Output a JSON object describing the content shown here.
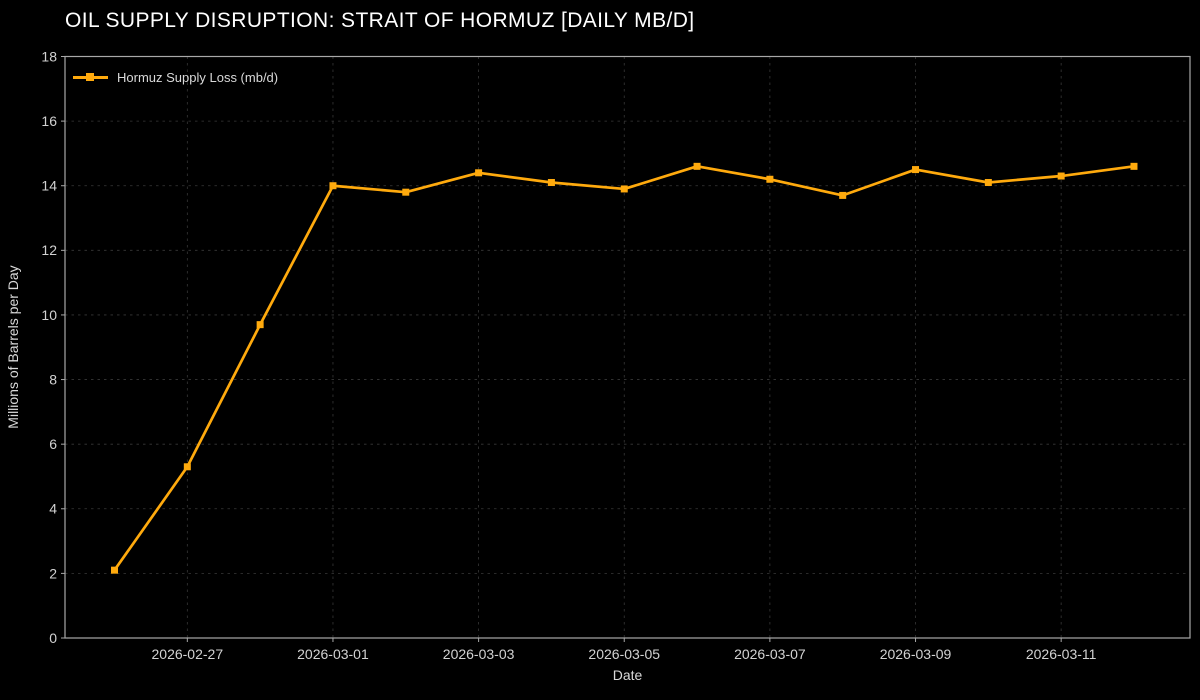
{
  "title": "OIL SUPPLY DISRUPTION: STRAIT OF HORMUZ [DAILY MB/D]",
  "legend": {
    "label": "Hormuz Supply Loss (mb/d)"
  },
  "colors": {
    "background": "#000000",
    "line": "#ffaa0d",
    "marker": "#ffaa0d",
    "grid": "#383838",
    "spine": "#a8a8a8",
    "tick_label": "#d2d2d2",
    "axis_label": "#d9d9d9",
    "title": "#ffffff"
  },
  "chart_data": {
    "type": "line",
    "title": "OIL SUPPLY DISRUPTION: STRAIT OF HORMUZ [DAILY MB/D]",
    "xlabel": "Date",
    "ylabel": "Millions of Barrels per Day",
    "ylim": [
      0,
      18
    ],
    "y_ticks": [
      0,
      2,
      4,
      6,
      8,
      10,
      12,
      14,
      16,
      18
    ],
    "x_tick_labels": [
      "2026-02-27",
      "2026-03-01",
      "2026-03-03",
      "2026-03-05",
      "2026-03-07",
      "2026-03-09",
      "2026-03-11"
    ],
    "x_tick_indices": [
      1,
      3,
      5,
      7,
      9,
      11,
      13
    ],
    "grid": true,
    "grid_style": "dashed",
    "legend_position": "upper-left",
    "series": [
      {
        "name": "Hormuz Supply Loss (mb/d)",
        "marker": "square",
        "x": [
          "2026-02-26",
          "2026-02-27",
          "2026-02-28",
          "2026-03-01",
          "2026-03-02",
          "2026-03-03",
          "2026-03-04",
          "2026-03-05",
          "2026-03-06",
          "2026-03-07",
          "2026-03-08",
          "2026-03-09",
          "2026-03-10",
          "2026-03-11",
          "2026-03-12"
        ],
        "values": [
          2.1,
          5.3,
          9.7,
          14.0,
          13.8,
          14.4,
          14.1,
          13.9,
          14.6,
          14.2,
          13.7,
          14.5,
          14.1,
          14.3,
          14.6
        ]
      }
    ]
  }
}
